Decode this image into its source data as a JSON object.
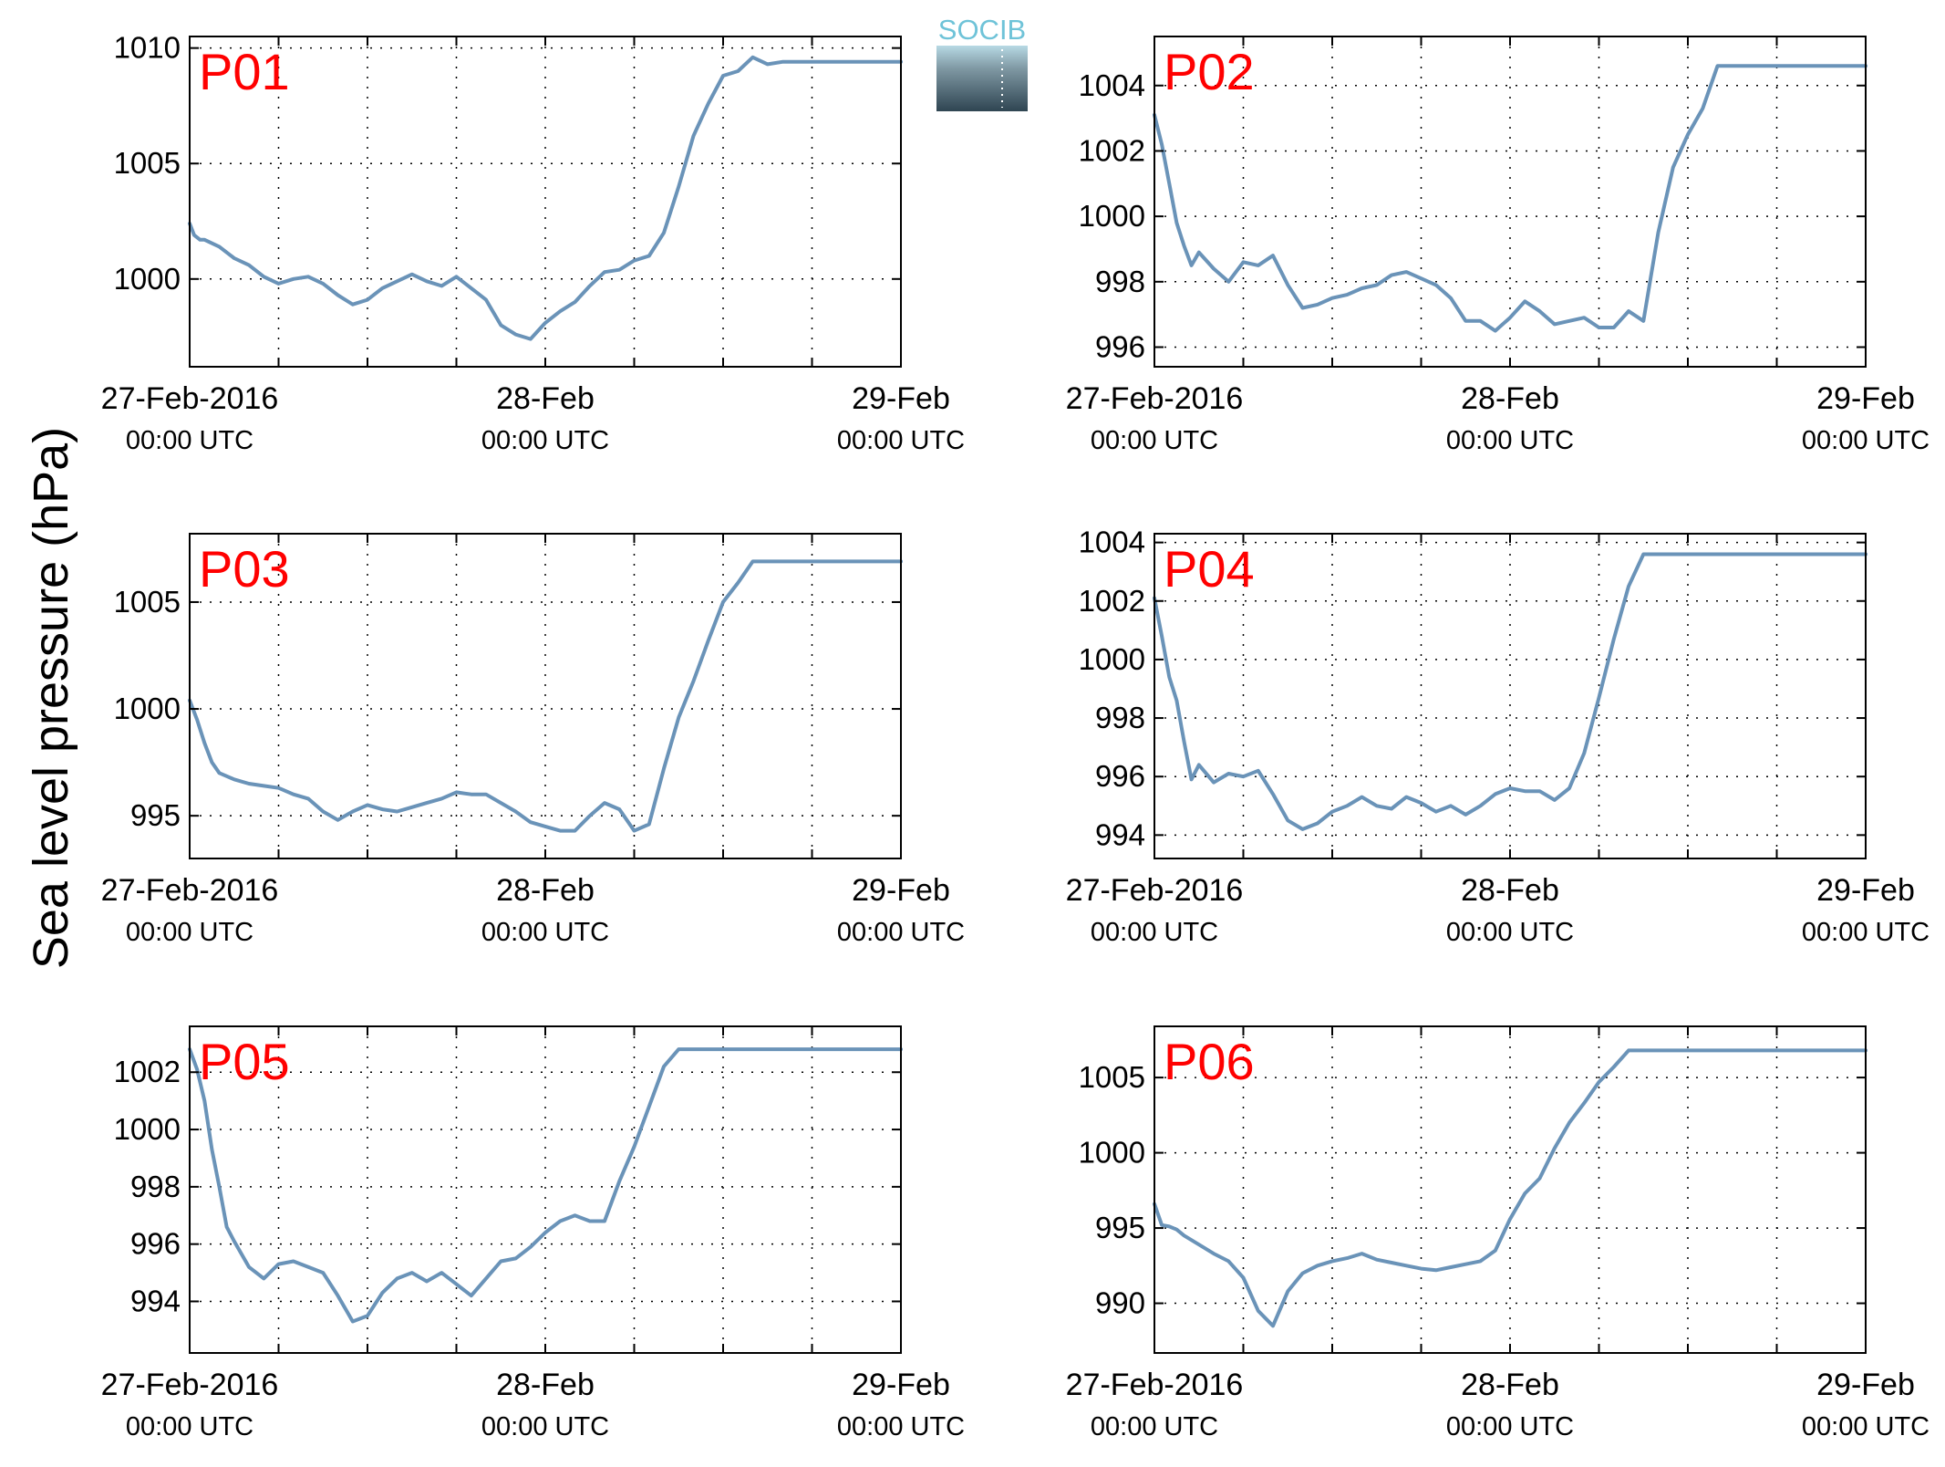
{
  "figure": {
    "ylabel": "Sea level pressure (hPa)",
    "line_color": "#6a93b8",
    "label_color": "#ff0000",
    "logo": {
      "text": "SOCIB",
      "text_color": "#6fc3d8"
    },
    "xtick_main": [
      "27-Feb-2016",
      "28-Feb",
      "29-Feb"
    ],
    "xtick_sub": [
      "00:00 UTC",
      "00:00 UTC",
      "00:00 UTC"
    ]
  },
  "chart_data": [
    {
      "type": "line",
      "title": "P01",
      "ylim": [
        996.2,
        1010.5
      ],
      "yticks": [
        1000,
        1005,
        1010
      ],
      "x_range_hours": [
        0,
        48
      ],
      "grid": true,
      "series": [
        {
          "x": [
            0,
            0.3,
            0.7,
            1,
            2,
            3,
            4,
            5,
            6,
            7,
            8,
            9,
            10,
            11,
            12,
            13,
            14,
            15,
            16,
            17,
            18,
            19,
            20,
            21,
            22,
            23,
            24,
            25,
            26,
            27,
            28,
            29,
            30,
            31,
            32,
            33,
            34,
            35,
            36,
            37,
            38,
            39,
            40,
            41,
            42,
            43,
            44,
            45,
            46,
            47,
            48
          ],
          "y": [
            1002.4,
            1001.9,
            1001.7,
            1001.7,
            1001.4,
            1000.9,
            1000.6,
            1000.1,
            999.8,
            1000.0,
            1000.1,
            999.8,
            999.3,
            998.9,
            999.1,
            999.6,
            999.9,
            1000.2,
            999.9,
            999.7,
            1000.1,
            999.6,
            999.1,
            998.0,
            997.6,
            997.4,
            998.1,
            998.6,
            999.0,
            999.7,
            1000.3,
            1000.4,
            1000.8,
            1001.0,
            1002.0,
            1004.0,
            1006.2,
            1007.6,
            1008.8,
            1009.0,
            1009.6,
            1009.3,
            1009.4,
            1009.4,
            1009.4,
            1009.4,
            1009.4,
            1009.4,
            1009.4,
            1009.4,
            1009.4
          ]
        }
      ]
    },
    {
      "type": "line",
      "title": "P02",
      "ylim": [
        995.4,
        1005.5
      ],
      "yticks": [
        996,
        998,
        1000,
        1002,
        1004
      ],
      "x_range_hours": [
        0,
        48
      ],
      "grid": true,
      "series": [
        {
          "x": [
            0,
            0.5,
            1,
            1.5,
            2,
            2.5,
            3,
            4,
            5,
            6,
            7,
            8,
            9,
            10,
            11,
            12,
            13,
            14,
            15,
            16,
            17,
            18,
            19,
            20,
            21,
            22,
            23,
            24,
            25,
            26,
            27,
            28,
            29,
            30,
            31,
            32,
            33,
            34,
            35,
            36,
            37,
            38,
            39,
            40,
            41,
            42,
            43,
            44,
            45,
            46,
            47,
            48
          ],
          "y": [
            1003.1,
            1002.2,
            1001.0,
            999.8,
            999.1,
            998.5,
            998.9,
            998.4,
            998.0,
            998.6,
            998.5,
            998.8,
            997.9,
            997.2,
            997.3,
            997.5,
            997.6,
            997.8,
            997.9,
            998.2,
            998.3,
            998.1,
            997.9,
            997.5,
            996.8,
            996.8,
            996.5,
            996.9,
            997.4,
            997.1,
            996.7,
            996.8,
            996.9,
            996.6,
            996.6,
            997.1,
            996.8,
            999.5,
            1001.5,
            1002.5,
            1003.3,
            1004.6,
            1004.6,
            1004.6,
            1004.6,
            1004.6,
            1004.6,
            1004.6,
            1004.6,
            1004.6,
            1004.6,
            1004.6
          ]
        }
      ]
    },
    {
      "type": "line",
      "title": "P03",
      "ylim": [
        993.0,
        1008.2
      ],
      "yticks": [
        995,
        1000,
        1005
      ],
      "x_range_hours": [
        0,
        48
      ],
      "grid": true,
      "series": [
        {
          "x": [
            0,
            0.5,
            1,
            1.5,
            2,
            3,
            4,
            5,
            6,
            7,
            8,
            9,
            10,
            11,
            12,
            13,
            14,
            15,
            16,
            17,
            18,
            19,
            20,
            21,
            22,
            23,
            24,
            25,
            26,
            27,
            28,
            29,
            30,
            31,
            32,
            33,
            34,
            35,
            36,
            37,
            38,
            39,
            40,
            41,
            42,
            43,
            44,
            45,
            46,
            47,
            48
          ],
          "y": [
            1000.4,
            999.5,
            998.4,
            997.5,
            997.0,
            996.7,
            996.5,
            996.4,
            996.3,
            996.0,
            995.8,
            995.2,
            994.8,
            995.2,
            995.5,
            995.3,
            995.2,
            995.4,
            995.6,
            995.8,
            996.1,
            996.0,
            996.0,
            995.6,
            995.2,
            994.7,
            994.5,
            994.3,
            994.3,
            995.0,
            995.6,
            995.3,
            994.3,
            994.6,
            997.2,
            999.6,
            1001.3,
            1003.2,
            1005.0,
            1005.9,
            1006.9,
            1006.9,
            1006.9,
            1006.9,
            1006.9,
            1006.9,
            1006.9,
            1006.9,
            1006.9,
            1006.9,
            1006.9
          ]
        }
      ]
    },
    {
      "type": "line",
      "title": "P04",
      "ylim": [
        993.2,
        1004.3
      ],
      "yticks": [
        994,
        996,
        998,
        1000,
        1002,
        1004
      ],
      "x_range_hours": [
        0,
        48
      ],
      "grid": true,
      "series": [
        {
          "x": [
            0,
            0.5,
            1,
            1.5,
            2,
            2.5,
            3,
            4,
            5,
            6,
            7,
            8,
            9,
            10,
            11,
            12,
            13,
            14,
            15,
            16,
            17,
            18,
            19,
            20,
            21,
            22,
            23,
            24,
            25,
            26,
            27,
            28,
            29,
            30,
            31,
            32,
            33,
            34,
            35,
            36,
            37,
            38,
            39,
            40,
            41,
            42,
            43,
            44,
            45,
            46,
            47,
            48
          ],
          "y": [
            1002.1,
            1000.8,
            999.4,
            998.6,
            997.2,
            995.9,
            996.4,
            995.8,
            996.1,
            996.0,
            996.2,
            995.4,
            994.5,
            994.2,
            994.4,
            994.8,
            995.0,
            995.3,
            995.0,
            994.9,
            995.3,
            995.1,
            994.8,
            995.0,
            994.7,
            995.0,
            995.4,
            995.6,
            995.5,
            995.5,
            995.2,
            995.6,
            996.8,
            998.7,
            1000.7,
            1002.5,
            1003.6,
            1003.6,
            1003.6,
            1003.6,
            1003.6,
            1003.6,
            1003.6,
            1003.6,
            1003.6,
            1003.6,
            1003.6,
            1003.6,
            1003.6,
            1003.6,
            1003.6,
            1003.6
          ]
        }
      ]
    },
    {
      "type": "line",
      "title": "P05",
      "ylim": [
        992.2,
        1003.6
      ],
      "yticks": [
        994,
        996,
        998,
        1000,
        1002
      ],
      "x_range_hours": [
        0,
        48
      ],
      "grid": true,
      "series": [
        {
          "x": [
            0,
            0.5,
            1,
            1.5,
            2,
            2.5,
            3,
            4,
            5,
            6,
            7,
            8,
            9,
            10,
            11,
            12,
            13,
            14,
            15,
            16,
            17,
            18,
            19,
            20,
            21,
            22,
            23,
            24,
            25,
            26,
            27,
            28,
            29,
            30,
            31,
            32,
            33,
            34,
            35,
            36,
            37,
            38,
            39,
            40,
            41,
            42,
            43,
            44,
            45,
            46,
            47,
            48
          ],
          "y": [
            1002.8,
            1002.1,
            1001.0,
            999.3,
            998.0,
            996.6,
            996.1,
            995.2,
            994.8,
            995.3,
            995.4,
            995.2,
            995.0,
            994.2,
            993.3,
            993.5,
            994.3,
            994.8,
            995.0,
            994.7,
            995.0,
            994.6,
            994.2,
            994.8,
            995.4,
            995.5,
            995.9,
            996.4,
            996.8,
            997.0,
            996.8,
            996.8,
            998.2,
            999.4,
            1000.8,
            1002.2,
            1002.8,
            1002.8,
            1002.8,
            1002.8,
            1002.8,
            1002.8,
            1002.8,
            1002.8,
            1002.8,
            1002.8,
            1002.8,
            1002.8,
            1002.8,
            1002.8,
            1002.8,
            1002.8
          ]
        }
      ]
    },
    {
      "type": "line",
      "title": "P06",
      "ylim": [
        986.7,
        1008.4
      ],
      "yticks": [
        990,
        995,
        1000,
        1005
      ],
      "x_range_hours": [
        0,
        48
      ],
      "grid": true,
      "series": [
        {
          "x": [
            0,
            0.5,
            1,
            1.5,
            2,
            3,
            4,
            5,
            6,
            7,
            8,
            9,
            10,
            11,
            12,
            13,
            14,
            15,
            16,
            17,
            18,
            19,
            20,
            21,
            22,
            23,
            24,
            25,
            26,
            27,
            28,
            29,
            30,
            31,
            32,
            33,
            34,
            35,
            36,
            37,
            38,
            39,
            40,
            41,
            42,
            43,
            44,
            45,
            46,
            47,
            48
          ],
          "y": [
            996.6,
            995.2,
            995.1,
            994.9,
            994.5,
            993.9,
            993.3,
            992.8,
            991.7,
            989.5,
            988.5,
            990.8,
            992.0,
            992.5,
            992.8,
            993.0,
            993.3,
            992.9,
            992.7,
            992.5,
            992.3,
            992.2,
            992.4,
            992.6,
            992.8,
            993.5,
            995.6,
            997.3,
            998.3,
            1000.3,
            1002.0,
            1003.3,
            1004.7,
            1005.7,
            1006.8,
            1006.8,
            1006.8,
            1006.8,
            1006.8,
            1006.8,
            1006.8,
            1006.8,
            1006.8,
            1006.8,
            1006.8,
            1006.8,
            1006.8,
            1006.8,
            1006.8,
            1006.8,
            1006.8
          ]
        }
      ]
    }
  ]
}
